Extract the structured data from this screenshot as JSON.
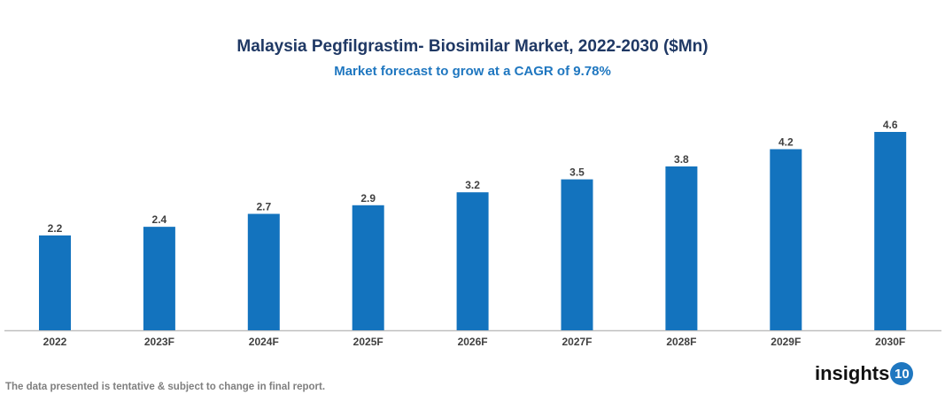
{
  "chart_data": {
    "type": "bar",
    "title": "Malaysia Pegfilgrastim- Biosimilar Market, 2022-2030 ($Mn)",
    "subtitle": "Market forecast to grow at a CAGR of 9.78%",
    "categories": [
      "2022",
      "2023F",
      "2024F",
      "2025F",
      "2026F",
      "2027F",
      "2028F",
      "2029F",
      "2030F"
    ],
    "values": [
      2.2,
      2.4,
      2.7,
      2.9,
      3.2,
      3.5,
      3.8,
      4.2,
      4.6
    ],
    "xlabel": "",
    "ylabel": "",
    "ylim": [
      0,
      4.6
    ],
    "grid": false,
    "bar_color": "#1373be",
    "data_labels": true
  },
  "footer": {
    "note": "The data presented is tentative & subject to change in final report."
  },
  "logo": {
    "text": "insights",
    "badge": "10"
  }
}
